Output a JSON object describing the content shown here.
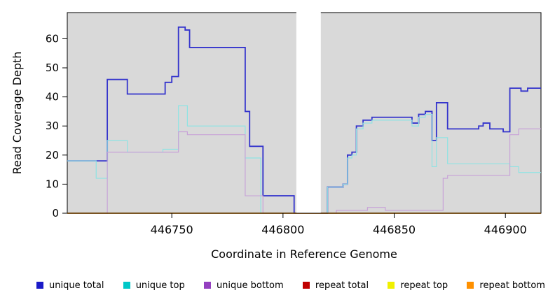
{
  "chart_data": {
    "type": "line",
    "step": true,
    "title": "",
    "xlabel": "Coordinate in Reference Genome",
    "ylabel": "Read Coverage Depth",
    "xlim": [
      446703,
      446916
    ],
    "ylim": [
      0,
      69
    ],
    "xticks": [
      446750,
      446800,
      446850,
      446900
    ],
    "yticks": [
      0,
      10,
      20,
      30,
      40,
      50,
      60
    ],
    "plot_background": "#d9d9d9",
    "border_color": "#000000",
    "legend_position": "bottom",
    "gap_region": {
      "x_start": 446806,
      "x_end": 446817,
      "color": "#ffffff"
    },
    "series": [
      {
        "name": "unique total",
        "color": "#1a1ac8",
        "line_color": "#3333cc",
        "line_width": 1.8,
        "points": [
          [
            446703,
            18
          ],
          [
            446721,
            46
          ],
          [
            446730,
            41
          ],
          [
            446747,
            45
          ],
          [
            446750,
            47
          ],
          [
            446753,
            64
          ],
          [
            446756,
            63
          ],
          [
            446758,
            57
          ],
          [
            446783,
            35
          ],
          [
            446785,
            23
          ],
          [
            446791,
            6
          ],
          [
            446805,
            0
          ],
          [
            446820,
            9
          ],
          [
            446827,
            10
          ],
          [
            446829,
            20
          ],
          [
            446831,
            21
          ],
          [
            446833,
            30
          ],
          [
            446836,
            32
          ],
          [
            446840,
            33
          ],
          [
            446858,
            31
          ],
          [
            446861,
            34
          ],
          [
            446864,
            35
          ],
          [
            446867,
            25
          ],
          [
            446869,
            38
          ],
          [
            446874,
            29
          ],
          [
            446888,
            30
          ],
          [
            446890,
            31
          ],
          [
            446893,
            29
          ],
          [
            446899,
            28
          ],
          [
            446902,
            43
          ],
          [
            446907,
            42
          ],
          [
            446910,
            43
          ]
        ]
      },
      {
        "name": "unique top",
        "color": "#00c8c8",
        "line_color": "#8fe3e3",
        "line_width": 1.2,
        "points": [
          [
            446703,
            18
          ],
          [
            446716,
            12
          ],
          [
            446721,
            25
          ],
          [
            446730,
            21
          ],
          [
            446746,
            22
          ],
          [
            446753,
            37
          ],
          [
            446757,
            30
          ],
          [
            446783,
            19
          ],
          [
            446790,
            0
          ],
          [
            446820,
            9
          ],
          [
            446827,
            10
          ],
          [
            446829,
            19
          ],
          [
            446831,
            20
          ],
          [
            446833,
            29
          ],
          [
            446836,
            31
          ],
          [
            446840,
            32
          ],
          [
            446858,
            30
          ],
          [
            446861,
            33
          ],
          [
            446864,
            34
          ],
          [
            446867,
            16
          ],
          [
            446869,
            26
          ],
          [
            446874,
            17
          ],
          [
            446902,
            16
          ],
          [
            446906,
            14
          ]
        ]
      },
      {
        "name": "unique bottom",
        "color": "#9440c0",
        "line_color": "#c8a2d8",
        "line_width": 1.2,
        "points": [
          [
            446703,
            0
          ],
          [
            446721,
            21
          ],
          [
            446753,
            28
          ],
          [
            446757,
            27
          ],
          [
            446783,
            6
          ],
          [
            446791,
            0
          ],
          [
            446824,
            1
          ],
          [
            446838,
            2
          ],
          [
            446846,
            1
          ],
          [
            446872,
            12
          ],
          [
            446874,
            13
          ],
          [
            446902,
            27
          ],
          [
            446906,
            29
          ]
        ]
      },
      {
        "name": "repeat total",
        "color": "#c00000",
        "line_color": "#c00000",
        "line_width": 1.2,
        "points": [
          [
            446703,
            0
          ]
        ]
      },
      {
        "name": "repeat top",
        "color": "#f0f000",
        "line_color": "#f0f000",
        "line_width": 1.2,
        "points": [
          [
            446703,
            0
          ]
        ]
      },
      {
        "name": "repeat bottom",
        "color": "#ff9000",
        "line_color": "#ff9000",
        "line_width": 1.5,
        "points": [
          [
            446703,
            0
          ]
        ]
      }
    ]
  }
}
